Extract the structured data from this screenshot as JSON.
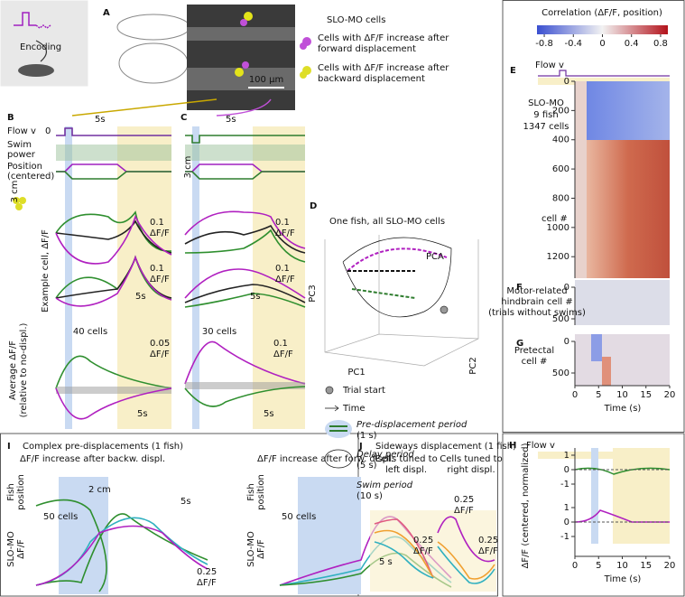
{
  "figure": {
    "icon_label": "Encoding",
    "panel_labels": [
      "A",
      "B",
      "C",
      "D",
      "E",
      "F",
      "G",
      "H",
      "I",
      "J"
    ],
    "a": {
      "title": "SLO-MO cells",
      "legend_forward": [
        "Cells with ΔF/F increase after",
        "forward displacement"
      ],
      "legend_backward": [
        "Cells with ΔF/F increase after",
        "backward displacement"
      ],
      "scale_bar": "100 µm"
    },
    "b": {
      "flow": "Flow v",
      "flow_zero": "0",
      "time_scale_top": "5s",
      "swim_power": [
        "Swim",
        "power"
      ],
      "position": [
        "Position",
        "(centered)"
      ],
      "position_scale": "3 cm",
      "example_label": "Example cell, ΔF/F",
      "example_scale_1": [
        "0.1",
        "ΔF/F"
      ],
      "example_scale_2": [
        "0.1",
        "ΔF/F"
      ],
      "example_time_scale": "5s",
      "n_cells": "40 cells",
      "average_scale": [
        "0.05",
        "ΔF/F"
      ],
      "average_time_scale": "5s",
      "average_label": [
        "Average ΔF/F",
        "(relative to no-displ.)"
      ]
    },
    "c": {
      "time_scale_top": "5s",
      "position_scale": "3 cm",
      "example_scale_1": [
        "0.1",
        "ΔF/F"
      ],
      "example_scale_2": [
        "0.1",
        "ΔF/F"
      ],
      "example_time_scale": "5s",
      "n_cells": "30 cells",
      "average_scale": [
        "0.1",
        "ΔF/F"
      ],
      "average_time_scale": "5s"
    },
    "d": {
      "title": "One fish, all SLO-MO cells",
      "method": "PCA",
      "axes": [
        "PC3",
        "PC1",
        "PC2"
      ],
      "legend": {
        "trial_start": "Trial start",
        "time": "Time",
        "pre": [
          "Pre-displacement period",
          "(1 s)"
        ],
        "delay": [
          "Delay period",
          "(5 s)"
        ],
        "swim": [
          "Swim period",
          "(10 s)"
        ]
      }
    },
    "e": {
      "colorbar": {
        "label": "Correlation (ΔF/F, position)",
        "lim": [
          -0.9,
          0.9
        ],
        "ticks": [
          -0.8,
          -0.4,
          0,
          0.4,
          0.8
        ]
      },
      "flow": "Flow v",
      "annotation": [
        "SLO-MO",
        "9 fish",
        "1347 cells"
      ],
      "ylabel": "cell #",
      "ylim": [
        0,
        1347
      ],
      "yticks": [
        0,
        200,
        400,
        600,
        800,
        1000,
        1200
      ]
    },
    "f": {
      "label": [
        "Motor-related",
        "hindbrain cell #",
        "(trials without swims)"
      ],
      "ylim": [
        0,
        600
      ],
      "yticks": [
        0,
        500
      ]
    },
    "g": {
      "label": [
        "Pretectal",
        "cell #"
      ],
      "ylim": [
        0,
        700
      ],
      "yticks": [
        0,
        500
      ],
      "xlim": [
        0,
        20
      ],
      "xticks": [
        0,
        5,
        10,
        15,
        20
      ],
      "xlabel": "Time (s)"
    },
    "h": {
      "flow": "Flow v",
      "ylabel": "ΔF/F (centered, normalized)",
      "ylim": [
        -1.5,
        1.5
      ],
      "yticks": [
        1,
        0,
        -1
      ],
      "xlim": [
        0,
        20
      ],
      "xticks": [
        0,
        5,
        10,
        15,
        20
      ],
      "xlabel": "Time (s)"
    },
    "i": {
      "title": "Complex pre-displacements (1 fish)",
      "left": {
        "subtitle": "ΔF/F increase after backw. displ.",
        "position": [
          "Fish",
          "position"
        ],
        "position_scale": "2 cm",
        "time_scale": "5s",
        "n_cells": "50 cells",
        "ylabel": [
          "SLO-MO",
          "ΔF/F"
        ],
        "scale": [
          "0.25",
          "ΔF/F"
        ]
      },
      "right": {
        "subtitle": "ΔF/F increase after forw. displ.",
        "position": [
          "Fish",
          "position"
        ],
        "n_cells": "50 cells",
        "ylabel": [
          "SLO-MO",
          "ΔF/F"
        ],
        "scale": [
          "0.25",
          "ΔF/F"
        ]
      }
    },
    "j": {
      "title": "Sideways displacement (1 fish)",
      "left": {
        "subtitle": [
          "Cells tuned to",
          "left displ."
        ],
        "scale": [
          "0.25",
          "ΔF/F"
        ],
        "time_scale": "5 s"
      },
      "right": {
        "subtitle": [
          "Cells tuned to",
          "right displ."
        ],
        "scale": [
          "0.25",
          "ΔF/F"
        ]
      }
    }
  }
}
